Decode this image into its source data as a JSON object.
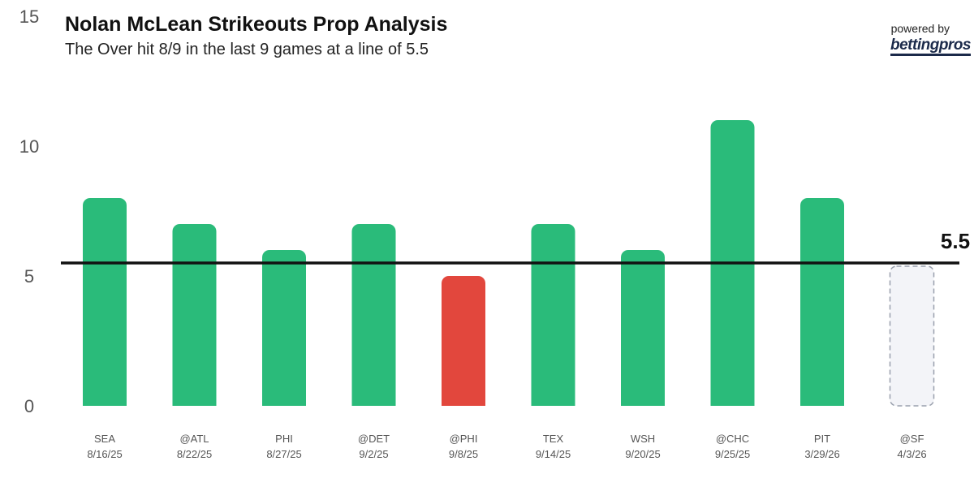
{
  "chart_data": {
    "type": "bar",
    "title": "Nolan McLean Strikeouts Prop Analysis",
    "subtitle": "The Over hit 8/9 in the last 9 games at a line of 5.5",
    "categories": [
      {
        "opp": "SEA",
        "date": "8/16/25"
      },
      {
        "opp": "@ATL",
        "date": "8/22/25"
      },
      {
        "opp": "PHI",
        "date": "8/27/25"
      },
      {
        "opp": "@DET",
        "date": "9/2/25"
      },
      {
        "opp": "@PHI",
        "date": "9/8/25"
      },
      {
        "opp": "TEX",
        "date": "9/14/25"
      },
      {
        "opp": "WSH",
        "date": "9/20/25"
      },
      {
        "opp": "@CHC",
        "date": "9/25/25"
      },
      {
        "opp": "PIT",
        "date": "3/29/26"
      },
      {
        "opp": "@SF",
        "date": "4/3/26"
      }
    ],
    "values": [
      8,
      7,
      6,
      7,
      5,
      7,
      6,
      11,
      8,
      null
    ],
    "line": 5.5,
    "line_label": "5.5",
    "ylim": [
      0,
      15
    ],
    "yticks": [
      "0",
      "5",
      "10",
      "15"
    ],
    "colors": {
      "over": "#2abb7a",
      "under": "#e2473d",
      "upcoming": "#f3f4f8",
      "line": "#111111"
    }
  },
  "branding": {
    "powered_by": "powered by",
    "brand": "bettingpros"
  }
}
